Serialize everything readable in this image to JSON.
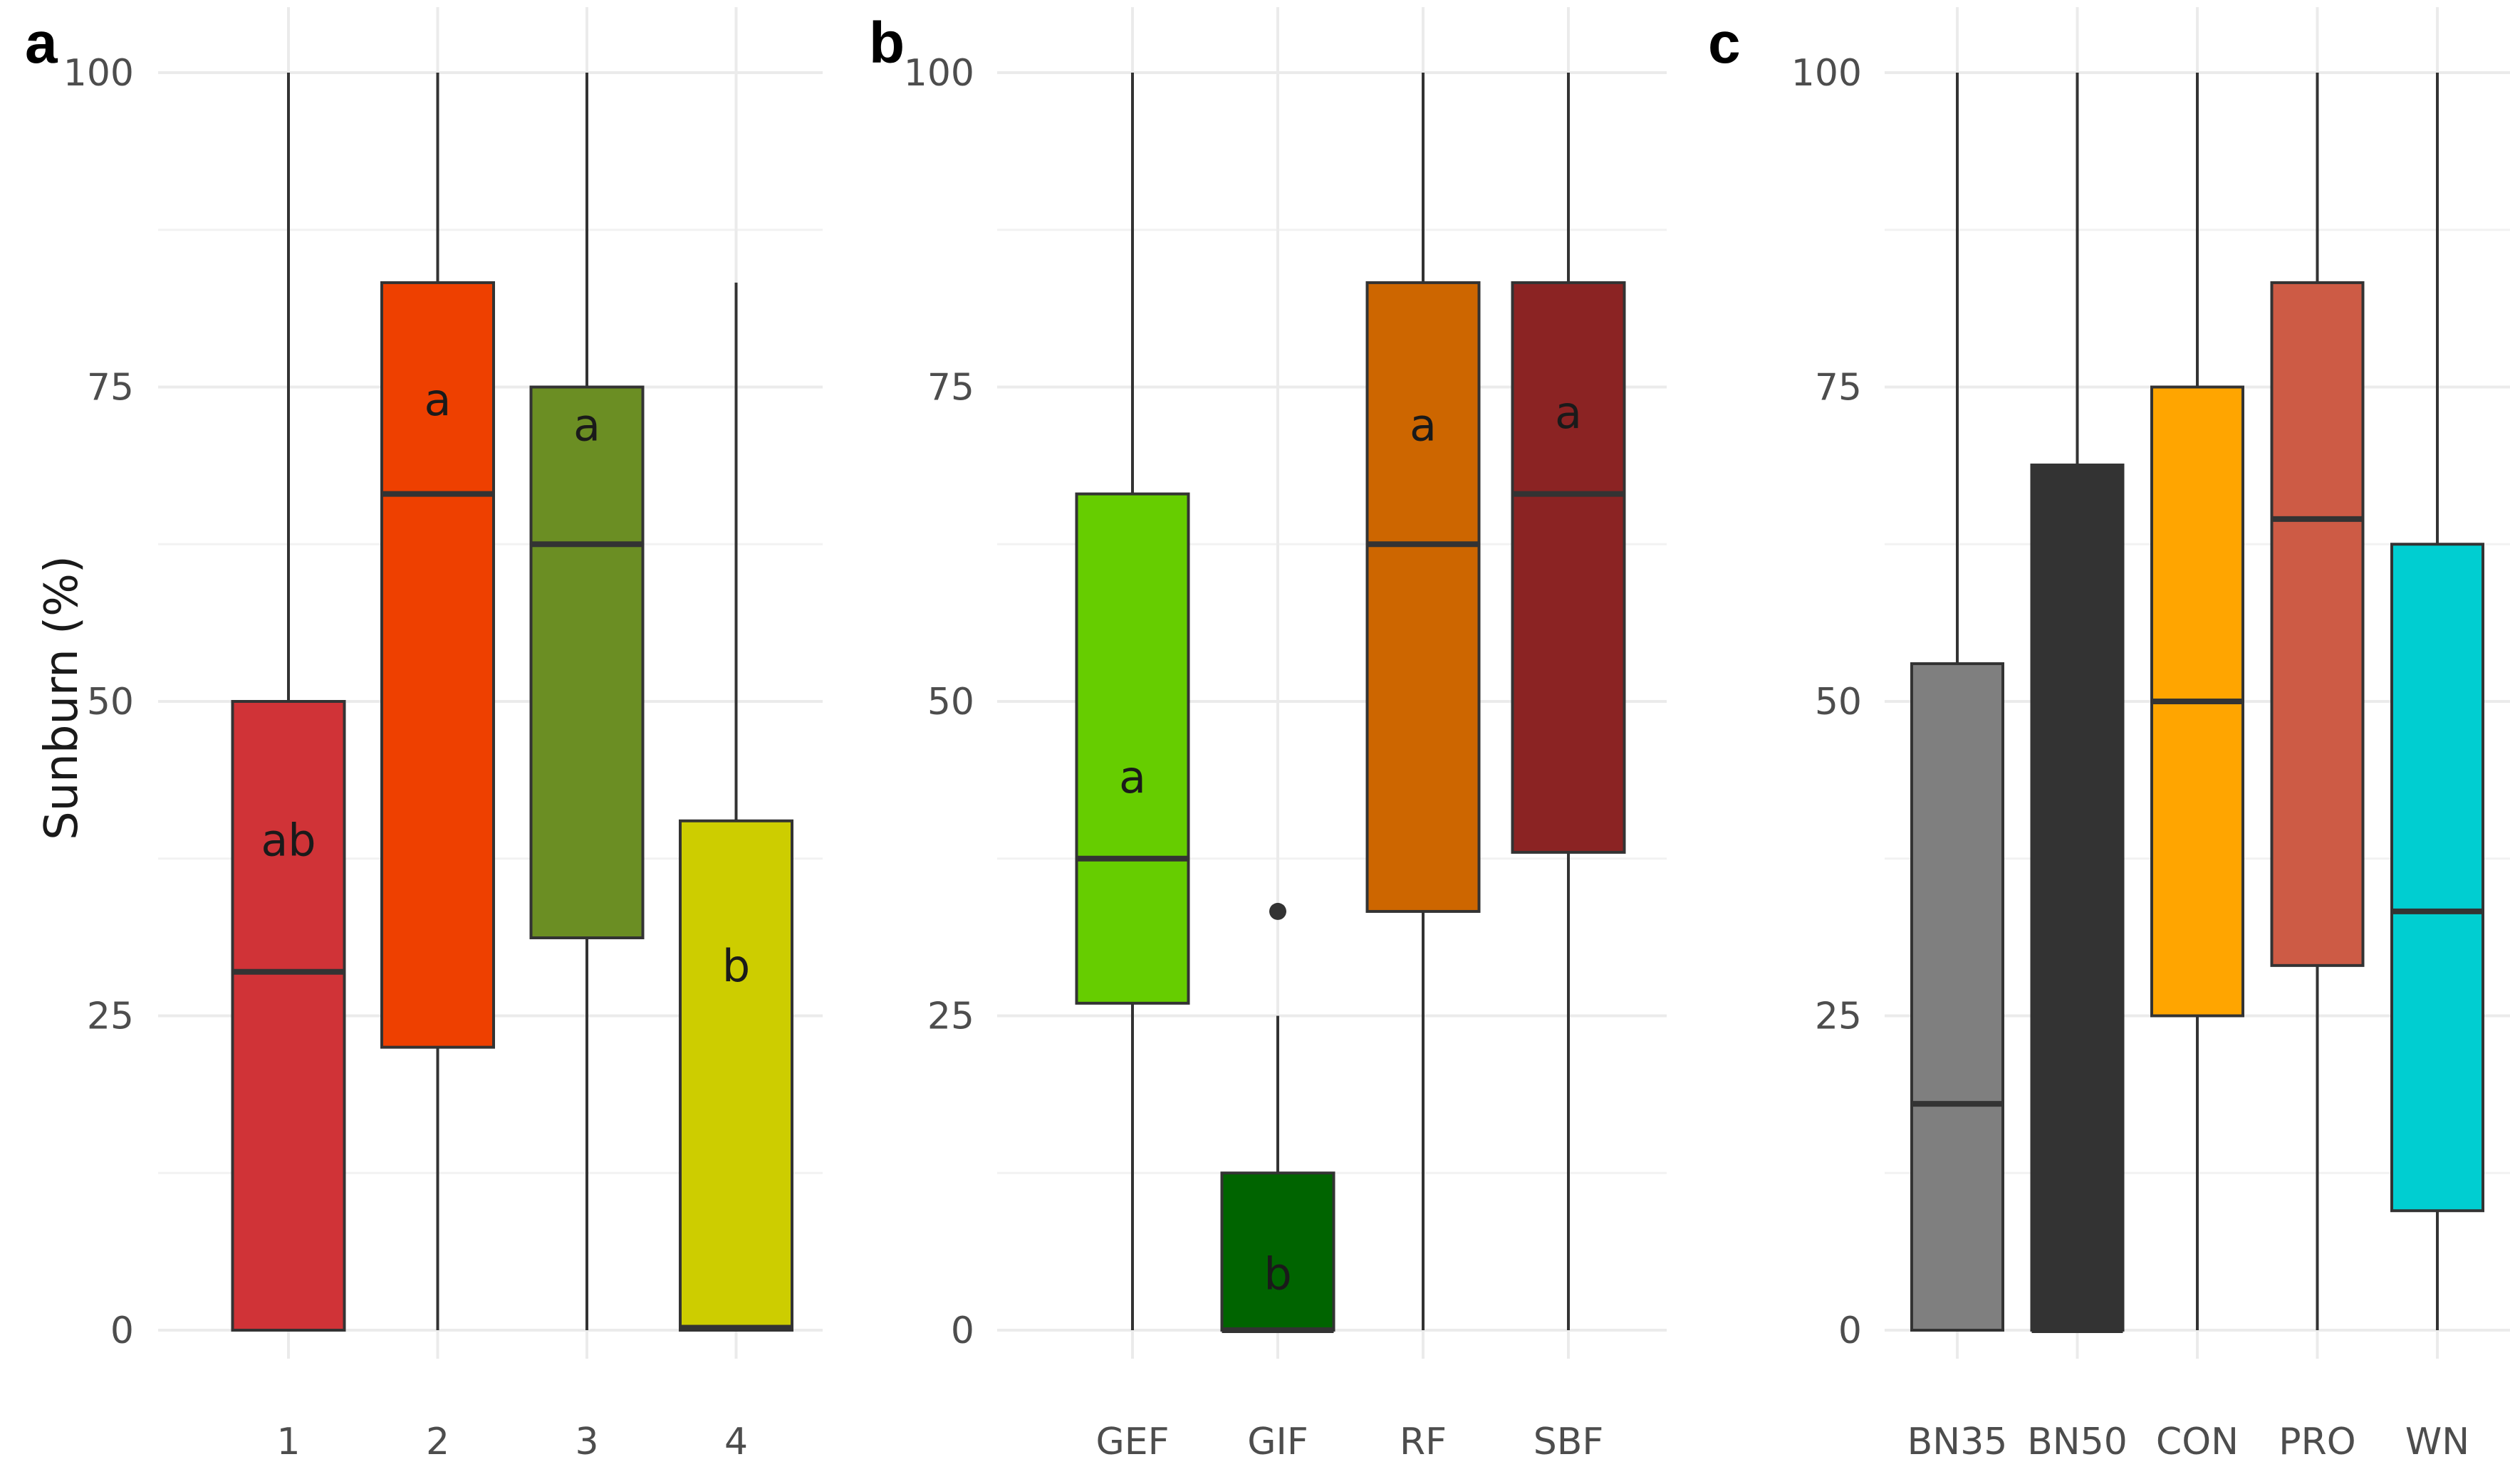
{
  "chart_data": [
    {
      "panel": "a",
      "type": "boxplot",
      "ylabel": "Sunburn (%)",
      "ylim": [
        0,
        100
      ],
      "yticks": [
        "0",
        "25",
        "50",
        "75",
        "100"
      ],
      "categories": [
        "1",
        "2",
        "3",
        "4"
      ],
      "boxes": [
        {
          "category": "1",
          "whisker_low": 0,
          "q1": 0,
          "median": 28.5,
          "q3": 50,
          "whisker_high": 100,
          "color": "#D03337",
          "letter": "ab",
          "letter_y": 39,
          "outliers": []
        },
        {
          "category": "2",
          "whisker_low": 0,
          "q1": 22.5,
          "median": 66.5,
          "q3": 83.3,
          "whisker_high": 100,
          "color": "#EE4000",
          "letter": "a",
          "letter_y": 74,
          "outliers": []
        },
        {
          "category": "3",
          "whisker_low": 0,
          "q1": 31.2,
          "median": 62.5,
          "q3": 75,
          "whisker_high": 100,
          "color": "#6B8E23",
          "letter": "a",
          "letter_y": 72,
          "outliers": []
        },
        {
          "category": "4",
          "whisker_low": 0,
          "q1": 0,
          "median": 0.2,
          "q3": 40.5,
          "whisker_high": 83.3,
          "color": "#CDCD00",
          "letter": "b",
          "letter_y": 29,
          "outliers": []
        }
      ]
    },
    {
      "panel": "b",
      "type": "boxplot",
      "ylim": [
        0,
        100
      ],
      "yticks": [
        "0",
        "25",
        "50",
        "75",
        "100"
      ],
      "categories": [
        "GEF",
        "GIF",
        "RF",
        "SBF"
      ],
      "boxes": [
        {
          "category": "GEF",
          "whisker_low": 0,
          "q1": 26,
          "median": 37.5,
          "q3": 66.5,
          "whisker_high": 100,
          "color": "#66CD00",
          "letter": "a",
          "letter_y": 44,
          "outliers": []
        },
        {
          "category": "GIF",
          "whisker_low": 0,
          "q1": 0,
          "median": 0,
          "q3": 12.5,
          "whisker_high": 25,
          "color": "#006400",
          "letter": "b",
          "letter_y": 4.5,
          "outliers": [
            33.3
          ]
        },
        {
          "category": "RF",
          "whisker_low": 0,
          "q1": 33.3,
          "median": 62.5,
          "q3": 83.3,
          "whisker_high": 100,
          "color": "#CD6600",
          "letter": "a",
          "letter_y": 72,
          "outliers": []
        },
        {
          "category": "SBF",
          "whisker_low": 0,
          "q1": 38,
          "median": 66.5,
          "q3": 83.3,
          "whisker_high": 100,
          "color": "#8B2323",
          "letter": "a",
          "letter_y": 73,
          "outliers": []
        }
      ]
    },
    {
      "panel": "c",
      "type": "boxplot",
      "ylim": [
        0,
        100
      ],
      "yticks": [
        "0",
        "25",
        "50",
        "75",
        "100"
      ],
      "categories": [
        "BN35",
        "BN50",
        "CON",
        "PRO",
        "WN"
      ],
      "boxes": [
        {
          "category": "BN35",
          "whisker_low": 0,
          "q1": 0,
          "median": 18,
          "q3": 53,
          "whisker_high": 100,
          "color": "#7F7F7F",
          "letter": "",
          "letter_y": 0,
          "outliers": []
        },
        {
          "category": "BN50",
          "whisker_low": 0,
          "q1": 0,
          "median": 0,
          "q3": 68.8,
          "whisker_high": 100,
          "color": "#333333",
          "letter": "",
          "letter_y": 0,
          "outliers": []
        },
        {
          "category": "CON",
          "whisker_low": 0,
          "q1": 25,
          "median": 50,
          "q3": 75,
          "whisker_high": 100,
          "color": "#FFA500",
          "letter": "",
          "letter_y": 0,
          "outliers": []
        },
        {
          "category": "PRO",
          "whisker_low": 0,
          "q1": 29,
          "median": 64.5,
          "q3": 83.3,
          "whisker_high": 100,
          "color": "#CD5B45",
          "letter": "",
          "letter_y": 0,
          "outliers": []
        },
        {
          "category": "WN",
          "whisker_low": 0,
          "q1": 9.5,
          "median": 33.3,
          "q3": 62.5,
          "whisker_high": 100,
          "color": "#00CED1",
          "letter": "",
          "letter_y": 0,
          "outliers": []
        }
      ]
    }
  ]
}
